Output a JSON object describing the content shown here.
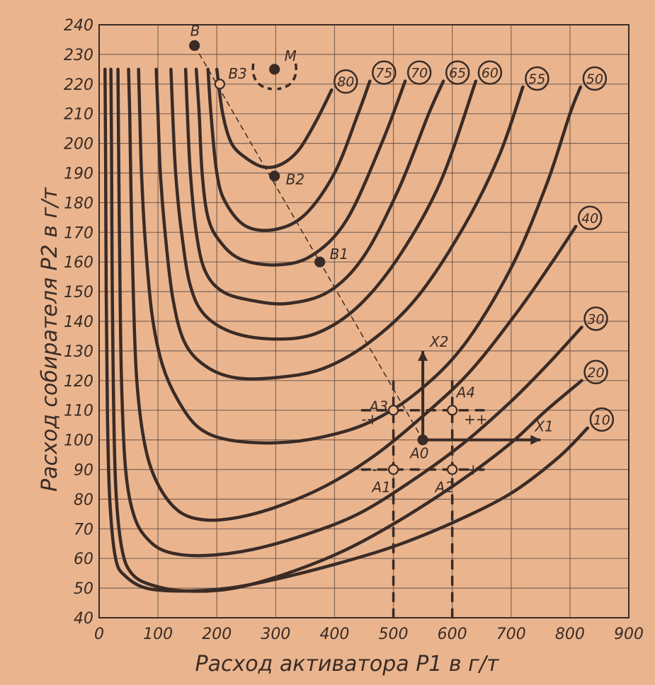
{
  "colors": {
    "paper": "#eab58e",
    "ink": "#3a2b26",
    "grid": "#5e4a44"
  },
  "chart_data": {
    "type": "line",
    "title": "",
    "xlabel": "Расход активатора P1 в г/т",
    "ylabel": "Расход собирателя P2 в г/т",
    "xlim": [
      0,
      900
    ],
    "ylim": [
      40,
      240
    ],
    "x_ticks": [
      "0",
      "100",
      "200",
      "300",
      "400",
      "500",
      "600",
      "700",
      "800",
      "900"
    ],
    "y_ticks": [
      "40",
      "50",
      "60",
      "70",
      "80",
      "90",
      "100",
      "110",
      "120",
      "130",
      "140",
      "150",
      "160",
      "170",
      "180",
      "190",
      "200",
      "210",
      "220",
      "230",
      "240"
    ],
    "grid": true,
    "series": [
      {
        "name": "80",
        "points": [
          [
            200,
            225
          ],
          [
            210,
            210
          ],
          [
            225,
            200
          ],
          [
            250,
            195
          ],
          [
            280,
            192
          ],
          [
            310,
            193
          ],
          [
            340,
            198
          ],
          [
            370,
            208
          ],
          [
            395,
            218
          ]
        ]
      },
      {
        "name": "75",
        "points": [
          [
            185,
            225
          ],
          [
            190,
            210
          ],
          [
            200,
            190
          ],
          [
            215,
            180
          ],
          [
            250,
            172
          ],
          [
            300,
            171
          ],
          [
            350,
            176
          ],
          [
            400,
            190
          ],
          [
            440,
            210
          ],
          [
            460,
            221
          ]
        ]
      },
      {
        "name": "70",
        "points": [
          [
            165,
            225
          ],
          [
            170,
            210
          ],
          [
            175,
            190
          ],
          [
            185,
            175
          ],
          [
            205,
            167
          ],
          [
            240,
            161
          ],
          [
            300,
            159
          ],
          [
            360,
            162
          ],
          [
            420,
            174
          ],
          [
            480,
            200
          ],
          [
            520,
            221
          ]
        ]
      },
      {
        "name": "65",
        "points": [
          [
            147,
            225
          ],
          [
            150,
            210
          ],
          [
            155,
            190
          ],
          [
            165,
            170
          ],
          [
            180,
            157
          ],
          [
            210,
            150
          ],
          [
            260,
            147
          ],
          [
            320,
            146
          ],
          [
            390,
            150
          ],
          [
            450,
            162
          ],
          [
            510,
            185
          ],
          [
            560,
            210
          ],
          [
            585,
            221
          ]
        ]
      },
      {
        "name": "60",
        "points": [
          [
            122,
            225
          ],
          [
            125,
            210
          ],
          [
            130,
            190
          ],
          [
            140,
            170
          ],
          [
            155,
            152
          ],
          [
            180,
            142
          ],
          [
            230,
            136
          ],
          [
            300,
            134
          ],
          [
            370,
            136
          ],
          [
            440,
            145
          ],
          [
            510,
            162
          ],
          [
            580,
            187
          ],
          [
            640,
            221
          ]
        ]
      },
      {
        "name": "55",
        "points": [
          [
            97,
            225
          ],
          [
            100,
            210
          ],
          [
            104,
            190
          ],
          [
            112,
            170
          ],
          [
            125,
            148
          ],
          [
            145,
            133
          ],
          [
            180,
            125
          ],
          [
            230,
            121
          ],
          [
            300,
            121
          ],
          [
            380,
            124
          ],
          [
            460,
            133
          ],
          [
            540,
            148
          ],
          [
            620,
            172
          ],
          [
            680,
            196
          ],
          [
            720,
            219
          ]
        ]
      },
      {
        "name": "50",
        "points": [
          [
            67,
            225
          ],
          [
            69,
            210
          ],
          [
            72,
            190
          ],
          [
            78,
            168
          ],
          [
            90,
            142
          ],
          [
            108,
            125
          ],
          [
            135,
            113
          ],
          [
            170,
            104
          ],
          [
            220,
            100
          ],
          [
            300,
            99
          ],
          [
            380,
            101
          ],
          [
            460,
            106
          ],
          [
            540,
            116
          ],
          [
            620,
            132
          ],
          [
            700,
            158
          ],
          [
            760,
            186
          ],
          [
            800,
            210
          ],
          [
            818,
            219
          ]
        ]
      },
      {
        "name": "40",
        "points": [
          [
            50,
            225
          ],
          [
            52,
            210
          ],
          [
            54,
            185
          ],
          [
            58,
            150
          ],
          [
            64,
            120
          ],
          [
            78,
            98
          ],
          [
            100,
            85
          ],
          [
            135,
            76
          ],
          [
            180,
            73
          ],
          [
            240,
            74
          ],
          [
            310,
            78
          ],
          [
            390,
            85
          ],
          [
            470,
            95
          ],
          [
            550,
            108
          ],
          [
            630,
            123
          ],
          [
            710,
            143
          ],
          [
            770,
            160
          ],
          [
            810,
            172
          ]
        ]
      },
      {
        "name": "30",
        "points": [
          [
            32,
            225
          ],
          [
            33,
            200
          ],
          [
            35,
            160
          ],
          [
            38,
            120
          ],
          [
            45,
            90
          ],
          [
            60,
            74
          ],
          [
            85,
            66
          ],
          [
            120,
            62
          ],
          [
            180,
            61
          ],
          [
            260,
            63
          ],
          [
            350,
            68
          ],
          [
            440,
            75
          ],
          [
            530,
            86
          ],
          [
            620,
            99
          ],
          [
            700,
            113
          ],
          [
            760,
            125
          ],
          [
            820,
            138
          ]
        ]
      },
      {
        "name": "20",
        "points": [
          [
            20,
            225
          ],
          [
            21,
            200
          ],
          [
            22,
            160
          ],
          [
            24,
            120
          ],
          [
            28,
            85
          ],
          [
            38,
            64
          ],
          [
            55,
            55
          ],
          [
            90,
            51
          ],
          [
            150,
            49
          ],
          [
            230,
            50
          ],
          [
            320,
            55
          ],
          [
            420,
            63
          ],
          [
            520,
            74
          ],
          [
            620,
            87
          ],
          [
            700,
            99
          ],
          [
            760,
            110
          ],
          [
            820,
            120
          ]
        ]
      },
      {
        "name": "10",
        "points": [
          [
            10,
            225
          ],
          [
            11,
            195
          ],
          [
            12,
            150
          ],
          [
            14,
            110
          ],
          [
            18,
            80
          ],
          [
            28,
            60
          ],
          [
            45,
            54
          ],
          [
            80,
            50
          ],
          [
            140,
            49
          ],
          [
            220,
            50
          ],
          [
            300,
            53
          ],
          [
            400,
            58
          ],
          [
            500,
            64
          ],
          [
            600,
            72
          ],
          [
            700,
            82
          ],
          [
            780,
            94
          ],
          [
            830,
            104
          ]
        ]
      }
    ],
    "curve_labels": [
      "80",
      "75",
      "70",
      "65",
      "60",
      "55",
      "50",
      "40",
      "30",
      "20",
      "10"
    ],
    "steepest_ascent_line": {
      "from": [
        162,
        233
      ],
      "to": [
        550,
        100
      ]
    },
    "points": [
      {
        "label": "B",
        "x": 162,
        "y": 233,
        "filled": true
      },
      {
        "label": "B3",
        "x": 205,
        "y": 220,
        "filled": false
      },
      {
        "label": "M",
        "x": 298,
        "y": 225,
        "filled": true
      },
      {
        "label": "B2",
        "x": 298,
        "y": 189,
        "filled": true
      },
      {
        "label": "B1",
        "x": 375,
        "y": 160,
        "filled": true
      },
      {
        "label": "A0",
        "x": 550,
        "y": 100,
        "filled": true
      },
      {
        "label": "A1",
        "x": 500,
        "y": 90,
        "filled": false
      },
      {
        "label": "A2",
        "x": 600,
        "y": 90,
        "filled": false
      },
      {
        "label": "A3",
        "x": 500,
        "y": 110,
        "filled": false
      },
      {
        "label": "A4",
        "x": 600,
        "y": 110,
        "filled": false
      }
    ],
    "factorial_signs": [
      {
        "text": "- -",
        "x": 460,
        "y": 90
      },
      {
        "text": "+-",
        "x": 640,
        "y": 90
      },
      {
        "text": "-+",
        "x": 460,
        "y": 107
      },
      {
        "text": "++",
        "x": 640,
        "y": 107
      }
    ],
    "axis_arrows": [
      {
        "label": "X1",
        "from": [
          550,
          100
        ],
        "to": [
          750,
          100
        ]
      },
      {
        "label": "X2",
        "from": [
          550,
          100
        ],
        "to": [
          550,
          130
        ]
      }
    ]
  }
}
